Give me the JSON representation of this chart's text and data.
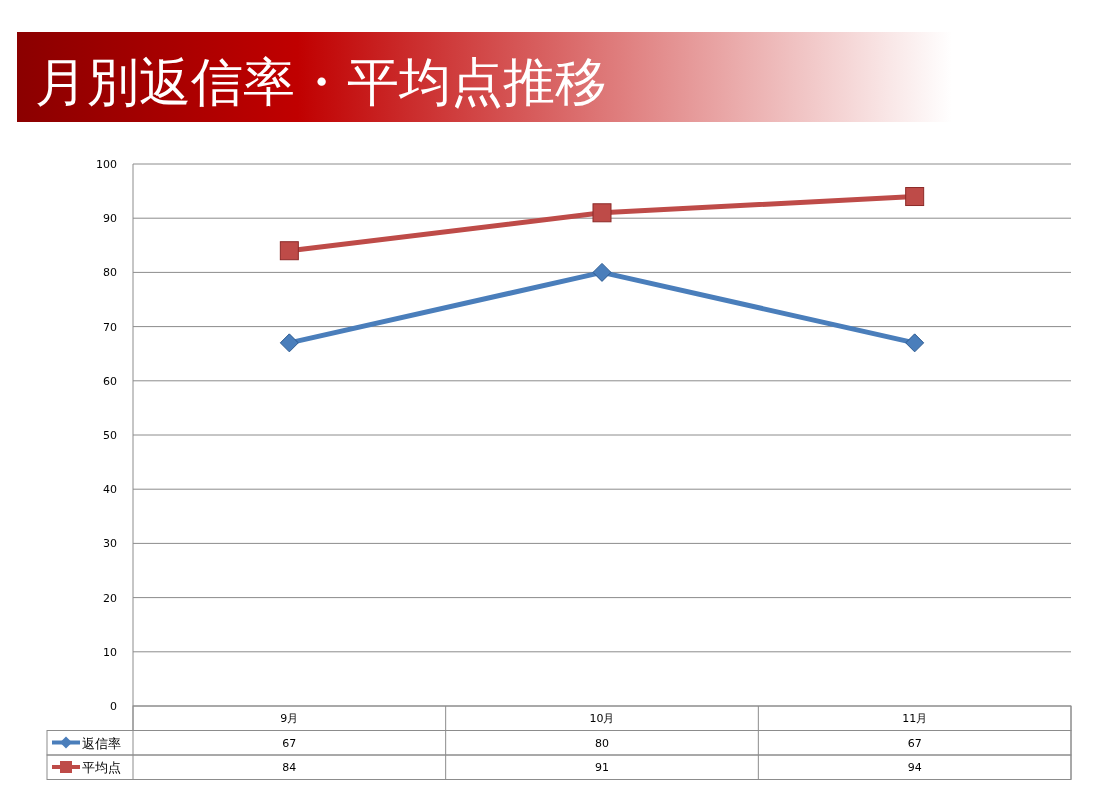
{
  "chart_data": {
    "type": "line",
    "title": "月別返信率・平均点推移",
    "categories": [
      "9月",
      "10月",
      "11月"
    ],
    "series": [
      {
        "name": "返信率",
        "color": "#4a7ebb",
        "marker": "diamond",
        "values": [
          67,
          80,
          67
        ]
      },
      {
        "name": "平均点",
        "color": "#be4b48",
        "marker": "square",
        "values": [
          84,
          91,
          94
        ]
      }
    ],
    "ylim": [
      0,
      100
    ],
    "yticks": [
      0,
      10,
      20,
      30,
      40,
      50,
      60,
      70,
      80,
      90,
      100
    ],
    "grid": "y",
    "legend": "bottom",
    "data_labels": true
  }
}
